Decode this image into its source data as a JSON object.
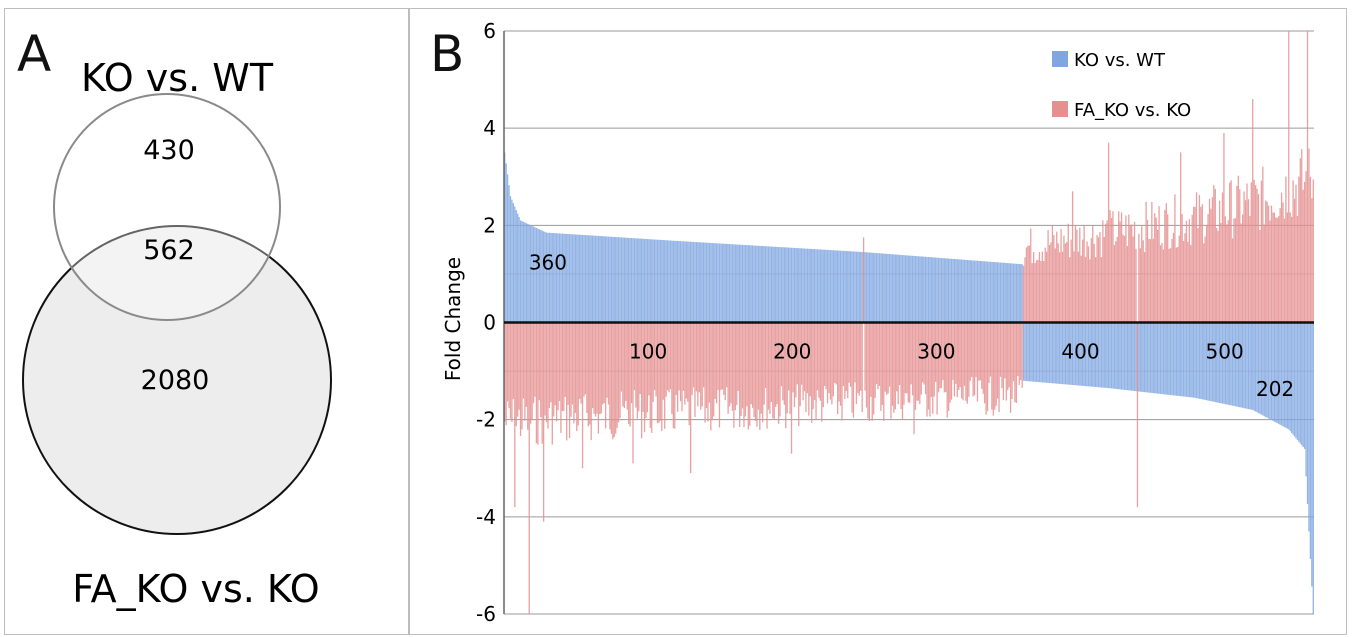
{
  "panel_a": {
    "letter": "A",
    "top_label": "KO vs. WT",
    "bottom_label": "FA_KO vs. KO",
    "only_top_count": "430",
    "overlap_count": "562",
    "only_bottom_count": "2080"
  },
  "panel_b": {
    "letter": "B"
  },
  "chart_data": {
    "type": "bar",
    "ylabel": "Fold Change",
    "xlabel": "",
    "ylim": [
      -6,
      6
    ],
    "xlim": [
      0,
      562
    ],
    "yticks": [
      -6,
      -4,
      -2,
      0,
      2,
      4,
      6
    ],
    "xticks": [
      100,
      200,
      300,
      400,
      500
    ],
    "grid": true,
    "legend_position": "top-right",
    "annotations": [
      {
        "text": "360",
        "x": 20,
        "y": 1.05
      },
      {
        "text": "202",
        "x": 535,
        "y": -1.55
      }
    ],
    "series": [
      {
        "name": "KO vs. WT",
        "color": "#7fa6e0",
        "segments": [
          {
            "x_start": 1,
            "x_end": 360,
            "profile": [
              [
                1,
                3.5
              ],
              [
                5,
                2.6
              ],
              [
                12,
                2.1
              ],
              [
                30,
                1.85
              ],
              [
                120,
                1.68
              ],
              [
                250,
                1.45
              ],
              [
                360,
                1.2
              ]
            ]
          },
          {
            "x_start": 361,
            "x_end": 562,
            "profile": [
              [
                361,
                -1.2
              ],
              [
                420,
                -1.35
              ],
              [
                480,
                -1.55
              ],
              [
                520,
                -1.8
              ],
              [
                545,
                -2.2
              ],
              [
                556,
                -2.6
              ],
              [
                562,
                -6.0
              ]
            ]
          }
        ]
      },
      {
        "name": "FA_KO vs. KO",
        "color": "#e58f8f",
        "segments": [
          {
            "x_start": 1,
            "x_end": 360,
            "profile": [
              [
                1,
                -2.0
              ],
              [
                60,
                -1.9
              ],
              [
                150,
                -1.75
              ],
              [
                250,
                -1.6
              ],
              [
                360,
                -1.45
              ]
            ],
            "spikes": [
              [
                8,
                -3.8
              ],
              [
                18,
                -6.0
              ],
              [
                28,
                -4.1
              ],
              [
                55,
                -3.0
              ],
              [
                90,
                -2.9
              ],
              [
                130,
                -3.1
              ],
              [
                200,
                -2.7
              ],
              [
                250,
                1.75
              ],
              [
                285,
                -2.3
              ]
            ]
          },
          {
            "x_start": 361,
            "x_end": 562,
            "profile": [
              [
                361,
                1.5
              ],
              [
                420,
                1.8
              ],
              [
                480,
                2.1
              ],
              [
                530,
                2.5
              ],
              [
                562,
                2.9
              ]
            ],
            "spikes": [
              [
                395,
                2.7
              ],
              [
                420,
                3.7
              ],
              [
                440,
                -3.8
              ],
              [
                470,
                3.5
              ],
              [
                500,
                3.9
              ],
              [
                520,
                4.6
              ],
              [
                545,
                6.0
              ],
              [
                558,
                6.0
              ]
            ]
          }
        ]
      }
    ]
  }
}
